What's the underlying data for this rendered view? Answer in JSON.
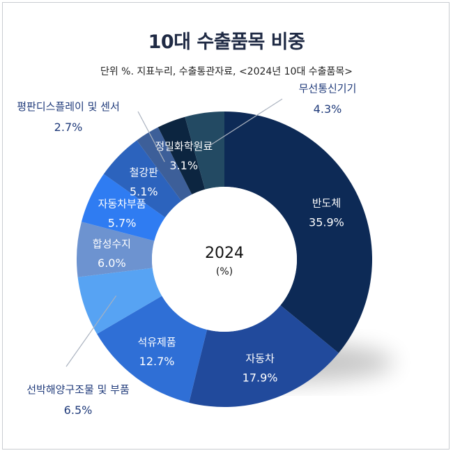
{
  "chart_data": {
    "type": "pie",
    "variant": "donut",
    "title": "10대 수출품목 비중",
    "subtitle": "단위 %. 지표누리, 수출통관자료, <2024년 10대 수출품목>",
    "center_label": "2024",
    "center_unit": "(%)",
    "slices": [
      {
        "name": "반도체",
        "value": 35.9,
        "value_label": "35.9%",
        "color": "#0d2a56"
      },
      {
        "name": "자동차",
        "value": 17.9,
        "value_label": "17.9%",
        "color": "#214a9c"
      },
      {
        "name": "석유제품",
        "value": 12.7,
        "value_label": "12.7%",
        "color": "#2f6fd6"
      },
      {
        "name": "선박해양구조물 및 부품",
        "value": 6.5,
        "value_label": "6.5%",
        "color": "#57a3f3"
      },
      {
        "name": "합성수지",
        "value": 6.0,
        "value_label": "6.0%",
        "color": "#6d93d0"
      },
      {
        "name": "자동차부품",
        "value": 5.7,
        "value_label": "5.7%",
        "color": "#2f7cf2"
      },
      {
        "name": "철강판",
        "value": 5.1,
        "value_label": "5.1%",
        "color": "#2c63bd"
      },
      {
        "name": "평판디스플레이 및 센서",
        "value": 2.7,
        "value_label": "2.7%",
        "color": "#3d5f99"
      },
      {
        "name": "정밀화학원료",
        "value": 3.1,
        "value_label": "3.1%",
        "color": "#0c2540"
      },
      {
        "name": "무선통신기기",
        "value": 4.3,
        "value_label": "4.3%",
        "color": "#234a63"
      }
    ]
  }
}
